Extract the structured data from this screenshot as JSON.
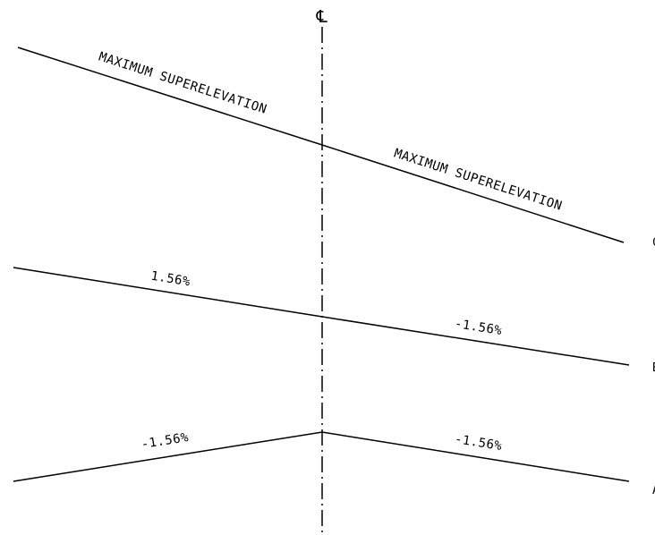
{
  "centerline": {
    "symbol": "℄"
  },
  "profiles": [
    {
      "id": "C",
      "edge_label": "C",
      "left_label": "MAXIMUM SUPERELEVATION",
      "right_label": "MAXIMUM SUPERELEVATION"
    },
    {
      "id": "B",
      "edge_label": "B",
      "left_label": "1.56%",
      "right_label": "-1.56%"
    },
    {
      "id": "A",
      "edge_label": "A",
      "left_label": "-1.56%",
      "right_label": "-1.56%"
    }
  ],
  "colors": {
    "line": "#000000",
    "background": "#ffffff"
  }
}
